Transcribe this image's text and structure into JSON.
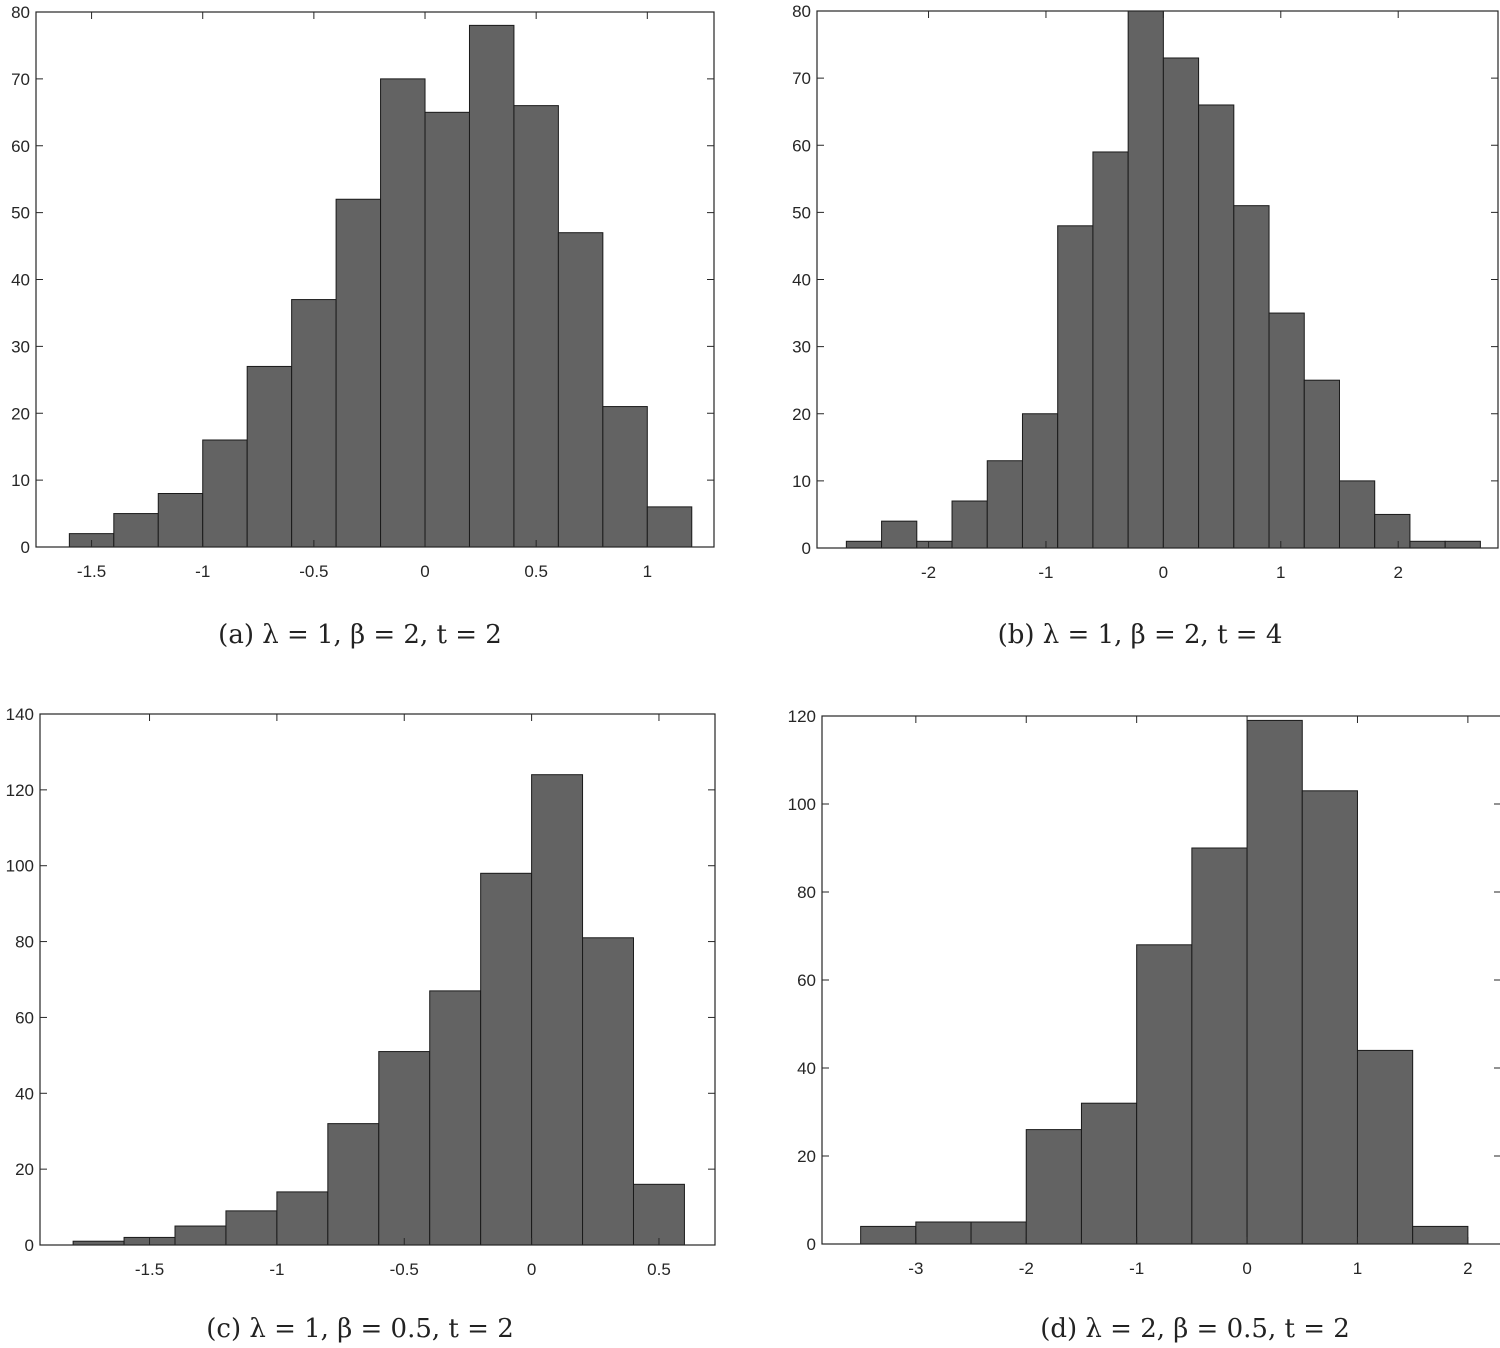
{
  "chart_data": [
    {
      "type": "bar",
      "caption": "(a) λ = 1, β = 2, t = 2",
      "color": "#636363",
      "bin_edges": [
        -1.6,
        -1.4,
        -1.2,
        -1.0,
        -0.8,
        -0.6,
        -0.4,
        -0.2,
        0.0,
        0.2,
        0.4,
        0.6,
        0.8,
        1.0,
        1.2
      ],
      "values": [
        2,
        5,
        8,
        16,
        27,
        37,
        52,
        70,
        65,
        78,
        66,
        47,
        21,
        6
      ],
      "xlim": [
        -1.75,
        1.3
      ],
      "ylim": [
        0,
        80
      ],
      "xticks": [
        -1.5,
        -1,
        -0.5,
        0,
        0.5,
        1
      ],
      "xtick_labels": [
        "-1.5",
        "-1",
        "-0.5",
        "0",
        "0.5",
        "1"
      ],
      "yticks": [
        0,
        10,
        20,
        30,
        40,
        50,
        60,
        70,
        80
      ],
      "ytick_labels": [
        "0",
        "10",
        "20",
        "30",
        "40",
        "50",
        "60",
        "70",
        "80"
      ]
    },
    {
      "type": "bar",
      "caption": "(b) λ = 1, β = 2, t = 4",
      "color": "#636363",
      "bin_edges": [
        -2.7,
        -2.4,
        -2.1,
        -1.8,
        -1.5,
        -1.2,
        -0.9,
        -0.6,
        -0.3,
        0.0,
        0.3,
        0.6,
        0.9,
        1.2,
        1.5,
        1.8,
        2.1,
        2.4,
        2.7
      ],
      "values": [
        1,
        4,
        1,
        7,
        13,
        20,
        48,
        59,
        80,
        73,
        66,
        51,
        35,
        25,
        10,
        5,
        1,
        1
      ],
      "xlim": [
        -2.95,
        2.85
      ],
      "ylim": [
        0,
        80
      ],
      "xticks": [
        -2,
        -1,
        0,
        1,
        2
      ],
      "xtick_labels": [
        "-2",
        "-1",
        "0",
        "1",
        "2"
      ],
      "yticks": [
        0,
        10,
        20,
        30,
        40,
        50,
        60,
        70,
        80
      ],
      "ytick_labels": [
        "0",
        "10",
        "20",
        "30",
        "40",
        "50",
        "60",
        "70",
        "80"
      ]
    },
    {
      "type": "bar",
      "caption": "(c) λ = 1, β = 0.5, t = 2",
      "color": "#636363",
      "bin_edges": [
        -1.8,
        -1.6,
        -1.4,
        -1.2,
        -1.0,
        -0.8,
        -0.6,
        -0.4,
        -0.2,
        0.0,
        0.2,
        0.4,
        0.6
      ],
      "values": [
        1,
        2,
        5,
        9,
        14,
        32,
        51,
        67,
        98,
        124,
        81,
        16
      ],
      "xlim": [
        -1.93,
        0.72
      ],
      "ylim": [
        0,
        140
      ],
      "xticks": [
        -1.5,
        -1,
        -0.5,
        0,
        0.5
      ],
      "xtick_labels": [
        "-1.5",
        "-1",
        "-0.5",
        "0",
        "0.5"
      ],
      "yticks": [
        0,
        20,
        40,
        60,
        80,
        100,
        120,
        140
      ],
      "ytick_labels": [
        "0",
        "20",
        "40",
        "60",
        "80",
        "100",
        "120",
        "140"
      ]
    },
    {
      "type": "bar",
      "caption": "(d) λ = 2, β = 0.5, t = 2",
      "color": "#636363",
      "bin_edges": [
        -3.5,
        -3.0,
        -2.5,
        -2.0,
        -1.5,
        -1.0,
        -0.5,
        0.0,
        0.5,
        1.0,
        1.5,
        2.0
      ],
      "values": [
        4,
        5,
        5,
        26,
        32,
        68,
        90,
        119,
        103,
        44,
        4
      ],
      "xlim": [
        -3.85,
        2.3
      ],
      "ylim": [
        0,
        120
      ],
      "xticks": [
        -3,
        -2,
        -1,
        0,
        1,
        2
      ],
      "xtick_labels": [
        "-3",
        "-2",
        "-1",
        "0",
        "1",
        "2"
      ],
      "yticks": [
        0,
        20,
        40,
        60,
        80,
        100,
        120
      ],
      "ytick_labels": [
        "0",
        "20",
        "40",
        "60",
        "80",
        "100",
        "120"
      ]
    }
  ]
}
